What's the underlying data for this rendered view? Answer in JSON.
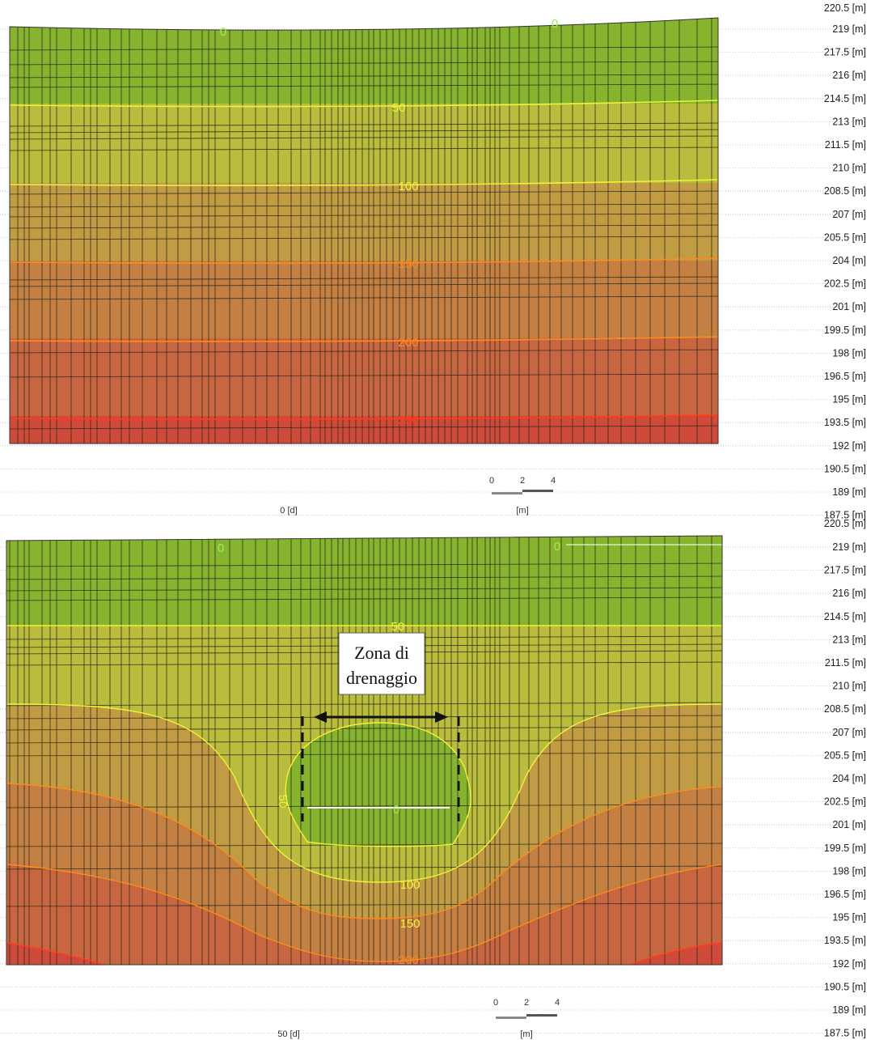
{
  "colors": {
    "c_top": "#86b42e",
    "c_50": "#b9bc3c",
    "c_100": "#c29c44",
    "c_150": "#c47f43",
    "c_200": "#c96642",
    "c_250": "#ce4a3a",
    "contour_yellow": "#f1f13a",
    "contour_orange": "#ff8a1c",
    "contour_red": "#ff3b1a",
    "contour_green": "#9cf050",
    "mesh_line": "#2c2a1c"
  },
  "elevation_labels": [
    "219 [m]",
    "217.5 [m]",
    "216 [m]",
    "214.5 [m]",
    "213 [m]",
    "211.5 [m]",
    "210 [m]",
    "208.5 [m]",
    "207 [m]",
    "205.5 [m]",
    "204 [m]",
    "202.5 [m]",
    "201 [m]",
    "199.5 [m]",
    "198 [m]",
    "196.5 [m]",
    "195 [m]",
    "193.5 [m]",
    "192 [m]",
    "190.5 [m]",
    "189 [m]",
    "187.5 [m]"
  ],
  "panels": [
    {
      "name": "top",
      "top_cut_label": "220.5 [m]",
      "time_label": "0 [d]",
      "scale": {
        "ticks": [
          "0",
          "2",
          "4"
        ],
        "unit": "[m]"
      },
      "contour_labels": [
        "0",
        "0",
        "50",
        "100",
        "150",
        "200",
        "250"
      ]
    },
    {
      "name": "bottom",
      "top_cut_label": "220.5 [m]",
      "time_label": "50 [d]",
      "scale": {
        "ticks": [
          "0",
          "2",
          "4"
        ],
        "unit": "[m]"
      },
      "contour_labels": [
        "0",
        "0",
        "50",
        "50",
        "0",
        "100",
        "150",
        "200"
      ]
    }
  ],
  "annotation": {
    "line1": "Zona di",
    "line2": "drenaggio"
  }
}
